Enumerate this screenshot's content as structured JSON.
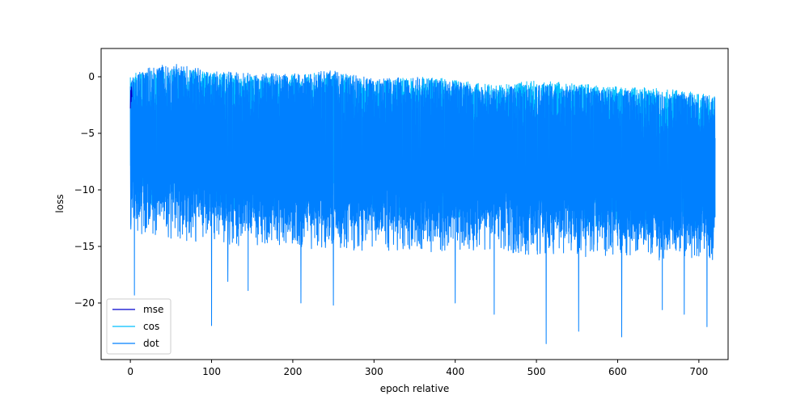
{
  "chart_data": {
    "type": "line",
    "xlabel": "epoch relative",
    "ylabel": "loss",
    "xlim": [
      -36,
      736
    ],
    "ylim": [
      -25,
      2.5
    ],
    "xticks": [
      0,
      100,
      200,
      300,
      400,
      500,
      600,
      700
    ],
    "yticks": [
      0,
      -5,
      -10,
      -15,
      -20
    ],
    "ytick_labels": [
      "0",
      "−5",
      "−10",
      "−15",
      "−20"
    ],
    "grid": false,
    "legend_position": "lower-left",
    "series": [
      {
        "name": "mse",
        "color": "#0000cd",
        "x_range": [
          0,
          2
        ],
        "points": [
          [
            0,
            -2.8
          ],
          [
            0.5,
            -1.2
          ],
          [
            1,
            -2.2
          ],
          [
            1.5,
            -0.9
          ],
          [
            2,
            -1.8
          ]
        ]
      },
      {
        "name": "cos",
        "color": "#00bfff",
        "x_range": [
          0,
          720
        ],
        "envelope": {
          "x": [
            0,
            50,
            100,
            150,
            200,
            250,
            300,
            350,
            400,
            450,
            500,
            550,
            600,
            650,
            700,
            720
          ],
          "upper": [
            0.3,
            0.8,
            0.4,
            0.1,
            0.2,
            0.4,
            -0.4,
            0.0,
            -0.2,
            -0.8,
            -0.3,
            -0.6,
            -0.9,
            -1.0,
            -1.4,
            -1.6
          ],
          "lower": [
            -9.5,
            -9.6,
            -10.0,
            -10.2,
            -10.2,
            -10.5,
            -10.6,
            -10.8,
            -10.8,
            -11.0,
            -11.2,
            -11.4,
            -11.5,
            -11.8,
            -12.0,
            -12.2
          ]
        }
      },
      {
        "name": "dot",
        "color": "#0080ff",
        "x_range": [
          0,
          720
        ],
        "envelope": {
          "x": [
            0,
            50,
            100,
            150,
            200,
            250,
            300,
            350,
            400,
            450,
            500,
            550,
            600,
            650,
            700,
            720
          ],
          "upper": [
            0.4,
            1.2,
            0.6,
            0.3,
            0.3,
            0.6,
            -0.2,
            0.0,
            -0.4,
            -1.0,
            -0.6,
            -0.8,
            -1.2,
            -1.3,
            -1.6,
            -1.8
          ],
          "lower": [
            -12.0,
            -12.5,
            -13.0,
            -13.2,
            -13.4,
            -13.5,
            -13.6,
            -13.7,
            -13.8,
            -13.9,
            -14.0,
            -14.1,
            -14.3,
            -14.4,
            -14.5,
            -14.6
          ]
        },
        "spikes": [
          [
            5,
            -19.3
          ],
          [
            100,
            -22.0
          ],
          [
            120,
            -18.1
          ],
          [
            145,
            -18.9
          ],
          [
            210,
            -20.0
          ],
          [
            250,
            -20.2
          ],
          [
            400,
            -20.0
          ],
          [
            448,
            -21.0
          ],
          [
            512,
            -23.6
          ],
          [
            552,
            -22.5
          ],
          [
            605,
            -23.0
          ],
          [
            655,
            -20.6
          ],
          [
            682,
            -21.0
          ],
          [
            710,
            -22.1
          ]
        ]
      }
    ]
  }
}
